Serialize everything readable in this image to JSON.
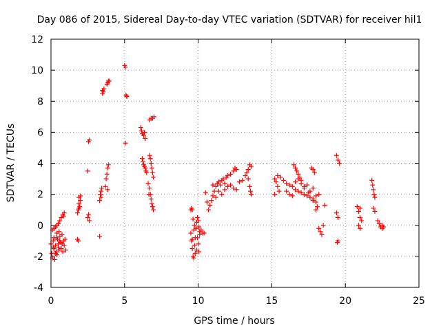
{
  "chart_data": {
    "type": "scatter",
    "title": "Day 086 of 2015, Sidereal Day-to-day VTEC variation (SDTVAR) for receiver hil1",
    "xlabel": "GPS time / hours",
    "ylabel": "SDTVAR / TECUs",
    "xlim": [
      0,
      25
    ],
    "ylim": [
      -4,
      12
    ],
    "xticks": [
      "0",
      "5",
      "10",
      "15",
      "20",
      "25"
    ],
    "yticks": [
      "-4",
      "-2",
      "0",
      "2",
      "4",
      "6",
      "8",
      "10",
      "12"
    ],
    "grid": true,
    "marker": "+",
    "color": "#ff0000",
    "series": [
      {
        "name": "sdtvar",
        "points": [
          [
            0.0,
            -1.2
          ],
          [
            0.05,
            -1.8
          ],
          [
            0.1,
            -0.3
          ],
          [
            0.1,
            -2.1
          ],
          [
            0.15,
            -1.0
          ],
          [
            0.2,
            -1.5
          ],
          [
            0.2,
            -0.2
          ],
          [
            0.25,
            -2.2
          ],
          [
            0.3,
            -0.1
          ],
          [
            0.3,
            -1.3
          ],
          [
            0.35,
            -0.8
          ],
          [
            0.4,
            0.0
          ],
          [
            0.4,
            -1.9
          ],
          [
            0.45,
            -0.9
          ],
          [
            0.5,
            -1.2
          ],
          [
            0.5,
            0.1
          ],
          [
            0.55,
            -1.6
          ],
          [
            0.6,
            0.3
          ],
          [
            0.6,
            -0.7
          ],
          [
            0.65,
            -1.1
          ],
          [
            0.7,
            0.5
          ],
          [
            0.7,
            -1.5
          ],
          [
            0.75,
            -0.6
          ],
          [
            0.8,
            0.7
          ],
          [
            0.8,
            -1.7
          ],
          [
            0.85,
            -1.0
          ],
          [
            0.9,
            0.8
          ],
          [
            0.9,
            -1.3
          ],
          [
            0.95,
            -0.9
          ],
          [
            1.0,
            -1.6
          ],
          [
            0.3,
            -1.8
          ],
          [
            0.5,
            -1.4
          ],
          [
            0.2,
            -0.8
          ],
          [
            0.6,
            -1.0
          ],
          [
            0.4,
            -0.5
          ],
          [
            0.15,
            -1.4
          ],
          [
            0.35,
            -1.7
          ],
          [
            0.55,
            -0.4
          ],
          [
            0.75,
            -1.2
          ],
          [
            0.85,
            0.6
          ],
          [
            1.8,
            -0.9
          ],
          [
            1.85,
            1.0
          ],
          [
            1.9,
            1.4
          ],
          [
            1.9,
            1.8
          ],
          [
            1.95,
            1.2
          ],
          [
            2.0,
            1.6
          ],
          [
            1.8,
            0.8
          ],
          [
            1.85,
            -1.0
          ],
          [
            2.0,
            1.9
          ],
          [
            1.9,
            1.1
          ],
          [
            2.5,
            3.5
          ],
          [
            2.55,
            5.4
          ],
          [
            2.6,
            5.5
          ],
          [
            2.5,
            0.5
          ],
          [
            2.55,
            0.7
          ],
          [
            2.6,
            0.3
          ],
          [
            3.3,
            -0.7
          ],
          [
            3.3,
            1.6
          ],
          [
            3.35,
            2.0
          ],
          [
            3.4,
            2.2
          ],
          [
            3.4,
            1.8
          ],
          [
            3.45,
            2.4
          ],
          [
            3.5,
            8.5
          ],
          [
            3.55,
            8.6
          ],
          [
            3.5,
            8.7
          ],
          [
            3.6,
            8.8
          ],
          [
            3.7,
            2.5
          ],
          [
            3.75,
            3.0
          ],
          [
            3.8,
            3.3
          ],
          [
            3.85,
            3.7
          ],
          [
            3.9,
            3.9
          ],
          [
            3.85,
            2.3
          ],
          [
            3.8,
            9.1
          ],
          [
            3.85,
            9.2
          ],
          [
            3.9,
            9.3
          ],
          [
            3.95,
            9.3
          ],
          [
            5.0,
            10.3
          ],
          [
            5.05,
            10.2
          ],
          [
            5.1,
            8.4
          ],
          [
            5.15,
            8.3
          ],
          [
            5.05,
            5.3
          ],
          [
            6.1,
            6.3
          ],
          [
            6.15,
            6.1
          ],
          [
            6.2,
            5.9
          ],
          [
            6.3,
            5.8
          ],
          [
            6.35,
            6.0
          ],
          [
            6.4,
            5.6
          ],
          [
            6.2,
            4.3
          ],
          [
            6.25,
            4.1
          ],
          [
            6.3,
            3.9
          ],
          [
            6.35,
            3.8
          ],
          [
            6.4,
            3.7
          ],
          [
            6.45,
            3.5
          ],
          [
            6.5,
            3.4
          ],
          [
            6.6,
            2.7
          ],
          [
            6.65,
            2.0
          ],
          [
            6.7,
            4.5
          ],
          [
            6.75,
            4.3
          ],
          [
            6.8,
            4.0
          ],
          [
            6.85,
            3.7
          ],
          [
            6.9,
            3.4
          ],
          [
            6.95,
            3.1
          ],
          [
            6.7,
            2.4
          ],
          [
            6.75,
            2.0
          ],
          [
            6.8,
            1.7
          ],
          [
            6.85,
            1.4
          ],
          [
            6.9,
            1.2
          ],
          [
            6.95,
            1.0
          ],
          [
            6.7,
            6.8
          ],
          [
            6.8,
            6.9
          ],
          [
            6.9,
            6.9
          ],
          [
            7.0,
            7.0
          ],
          [
            9.5,
            1.0
          ],
          [
            9.55,
            1.1
          ],
          [
            9.6,
            1.0
          ],
          [
            9.5,
            -0.5
          ],
          [
            9.55,
            -1.0
          ],
          [
            9.6,
            -1.5
          ],
          [
            9.65,
            -2.0
          ],
          [
            9.7,
            -2.1
          ],
          [
            9.75,
            -1.3
          ],
          [
            9.8,
            -0.8
          ],
          [
            9.85,
            -0.2
          ],
          [
            9.9,
            0.2
          ],
          [
            9.95,
            0.5
          ],
          [
            10.0,
            0.3
          ],
          [
            10.05,
            -0.1
          ],
          [
            10.1,
            -0.6
          ],
          [
            9.7,
            -0.3
          ],
          [
            9.8,
            -1.8
          ],
          [
            9.9,
            -1.6
          ],
          [
            10.0,
            -1.2
          ],
          [
            9.6,
            -0.9
          ],
          [
            9.75,
            0.0
          ],
          [
            9.95,
            -0.8
          ],
          [
            10.05,
            -1.7
          ],
          [
            9.65,
            0.4
          ],
          [
            10.1,
            -0.4
          ],
          [
            10.2,
            -0.3
          ],
          [
            10.3,
            -0.5
          ],
          [
            10.4,
            -0.5
          ],
          [
            10.5,
            2.1
          ],
          [
            10.6,
            1.5
          ],
          [
            10.7,
            1.0
          ],
          [
            10.8,
            1.3
          ],
          [
            10.9,
            1.6
          ],
          [
            11.0,
            1.9
          ],
          [
            11.1,
            2.2
          ],
          [
            11.2,
            2.5
          ],
          [
            11.3,
            2.7
          ],
          [
            11.4,
            2.8
          ],
          [
            11.5,
            2.6
          ],
          [
            11.6,
            2.9
          ],
          [
            11.7,
            3.0
          ],
          [
            11.8,
            2.7
          ],
          [
            11.9,
            3.1
          ],
          [
            12.0,
            3.2
          ],
          [
            12.2,
            3.3
          ],
          [
            12.4,
            3.5
          ],
          [
            12.6,
            3.6
          ],
          [
            12.5,
            3.7
          ],
          [
            11.0,
            2.6
          ],
          [
            11.2,
            1.8
          ],
          [
            11.4,
            2.2
          ],
          [
            11.6,
            2.0
          ],
          [
            11.8,
            2.3
          ],
          [
            12.0,
            2.5
          ],
          [
            12.2,
            2.6
          ],
          [
            12.4,
            2.4
          ],
          [
            12.6,
            2.3
          ],
          [
            12.8,
            2.8
          ],
          [
            13.0,
            2.9
          ],
          [
            13.2,
            3.2
          ],
          [
            13.4,
            3.6
          ],
          [
            13.5,
            3.9
          ],
          [
            13.6,
            3.8
          ],
          [
            13.5,
            2.5
          ],
          [
            13.55,
            2.2
          ],
          [
            13.6,
            2.0
          ],
          [
            13.4,
            3.0
          ],
          [
            13.3,
            3.4
          ],
          [
            15.2,
            3.0
          ],
          [
            15.3,
            2.8
          ],
          [
            15.4,
            2.5
          ],
          [
            15.5,
            2.2
          ],
          [
            15.2,
            2.0
          ],
          [
            15.4,
            3.2
          ],
          [
            15.6,
            3.1
          ],
          [
            15.8,
            2.9
          ],
          [
            16.0,
            2.7
          ],
          [
            16.2,
            2.6
          ],
          [
            16.4,
            2.5
          ],
          [
            16.6,
            2.3
          ],
          [
            16.8,
            2.2
          ],
          [
            17.0,
            2.1
          ],
          [
            17.2,
            2.0
          ],
          [
            17.4,
            1.9
          ],
          [
            17.6,
            1.8
          ],
          [
            17.8,
            1.7
          ],
          [
            18.0,
            1.9
          ],
          [
            18.2,
            2.0
          ],
          [
            16.0,
            2.2
          ],
          [
            16.2,
            2.0
          ],
          [
            16.4,
            1.9
          ],
          [
            16.6,
            2.8
          ],
          [
            16.8,
            3.0
          ],
          [
            17.0,
            2.7
          ],
          [
            17.2,
            2.4
          ],
          [
            17.4,
            2.6
          ],
          [
            17.6,
            2.2
          ],
          [
            17.8,
            2.4
          ],
          [
            16.5,
            3.9
          ],
          [
            16.6,
            3.7
          ],
          [
            16.7,
            3.5
          ],
          [
            16.8,
            3.3
          ],
          [
            16.9,
            3.1
          ],
          [
            17.0,
            2.9
          ],
          [
            17.2,
            2.5
          ],
          [
            17.5,
            2.1
          ],
          [
            17.8,
            1.6
          ],
          [
            18.0,
            1.0
          ],
          [
            17.7,
            3.7
          ],
          [
            17.8,
            3.6
          ],
          [
            17.9,
            3.4
          ],
          [
            18.0,
            1.5
          ],
          [
            18.1,
            1.2
          ],
          [
            18.2,
            -0.2
          ],
          [
            18.3,
            -0.4
          ],
          [
            18.4,
            -0.6
          ],
          [
            18.5,
            0.0
          ],
          [
            18.6,
            1.3
          ],
          [
            19.4,
            4.5
          ],
          [
            19.5,
            4.2
          ],
          [
            19.6,
            4.0
          ],
          [
            19.4,
            0.8
          ],
          [
            19.5,
            0.5
          ],
          [
            19.45,
            -1.1
          ],
          [
            19.5,
            -1.0
          ],
          [
            20.8,
            1.2
          ],
          [
            20.9,
            0.9
          ],
          [
            21.0,
            0.5
          ],
          [
            21.0,
            1.1
          ],
          [
            21.1,
            0.3
          ],
          [
            20.9,
            0.0
          ],
          [
            21.0,
            -0.2
          ],
          [
            21.8,
            2.9
          ],
          [
            21.85,
            2.6
          ],
          [
            21.9,
            2.3
          ],
          [
            21.95,
            2.0
          ],
          [
            22.0,
            1.8
          ],
          [
            21.9,
            1.1
          ],
          [
            22.0,
            0.9
          ],
          [
            22.2,
            0.3
          ],
          [
            22.3,
            0.1
          ],
          [
            22.4,
            -0.1
          ],
          [
            22.5,
            -0.2
          ],
          [
            22.6,
            -0.1
          ],
          [
            22.5,
            0.0
          ]
        ]
      }
    ]
  }
}
